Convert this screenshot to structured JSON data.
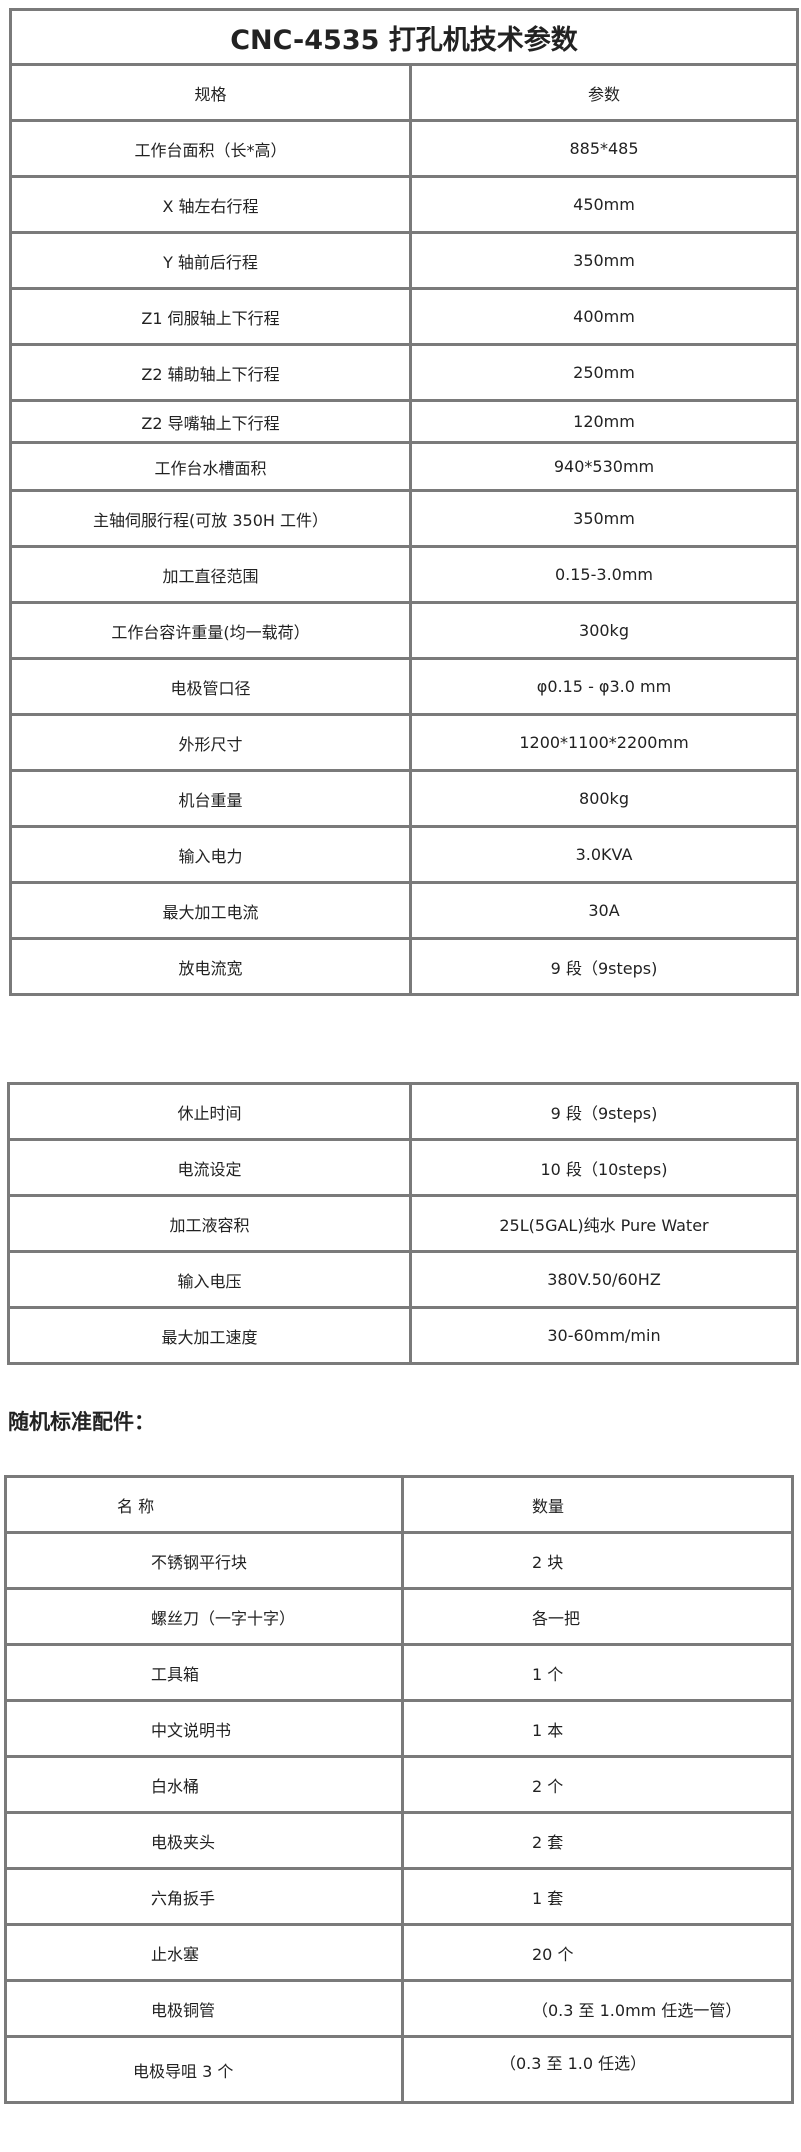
{
  "spec_table": {
    "title": "CNC-4535 打孔机技术参数",
    "headers": [
      "规格",
      "参数"
    ],
    "rows": [
      [
        "工作台面积（长*高）",
        "885*485"
      ],
      [
        "X 轴左右行程",
        "450mm"
      ],
      [
        "Y 轴前后行程",
        "350mm"
      ],
      [
        "Z1 伺服轴上下行程",
        "400mm"
      ],
      [
        "Z2 辅助轴上下行程",
        "250mm"
      ],
      [
        "Z2 导嘴轴上下行程",
        "120mm"
      ],
      [
        "工作台水槽面积",
        "940*530mm"
      ],
      [
        "主轴伺服行程(可放 350H 工件）",
        "350mm"
      ],
      [
        "加工直径范围",
        "0.15-3.0mm"
      ],
      [
        "工作台容许重量(均一载荷）",
        "300kg"
      ],
      [
        "电极管口径",
        "φ0.15 -  φ3.0 mm"
      ],
      [
        "外形尺寸",
        "1200*1100*2200mm"
      ],
      [
        "机台重量",
        "800kg"
      ],
      [
        "输入电力",
        "3.0KVA"
      ],
      [
        "最大加工电流",
        "30A"
      ],
      [
        "放电流宽",
        "9 段（9steps)"
      ]
    ]
  },
  "spec_table_2": {
    "rows": [
      [
        "休止时间",
        "9 段（9steps)"
      ],
      [
        "电流设定",
        "10 段（10steps)"
      ],
      [
        "加工液容积",
        "25L(5GAL)纯水 Pure Water"
      ],
      [
        "输入电压",
        "380V.50/60HZ"
      ],
      [
        "最大加工速度",
        "30-60mm/min"
      ]
    ]
  },
  "accessories": {
    "heading": "随机标准配件：",
    "headers": [
      "名  称",
      "数量"
    ],
    "rows": [
      [
        "不锈钢平行块",
        "2 块"
      ],
      [
        "螺丝刀（一字十字）",
        "各一把"
      ],
      [
        "工具箱",
        "1 个"
      ],
      [
        "中文说明书",
        "1 本"
      ],
      [
        "白水桶",
        "2 个"
      ],
      [
        "电极夹头",
        "2 套"
      ],
      [
        "六角扳手",
        "1 套"
      ],
      [
        "止水塞",
        "20 个"
      ],
      [
        "电极铜管",
        "（0.3 至 1.0mm 任选一管）"
      ],
      [
        "电极导咀 3 个",
        "（0.3 至 1.0 任选）"
      ]
    ]
  }
}
